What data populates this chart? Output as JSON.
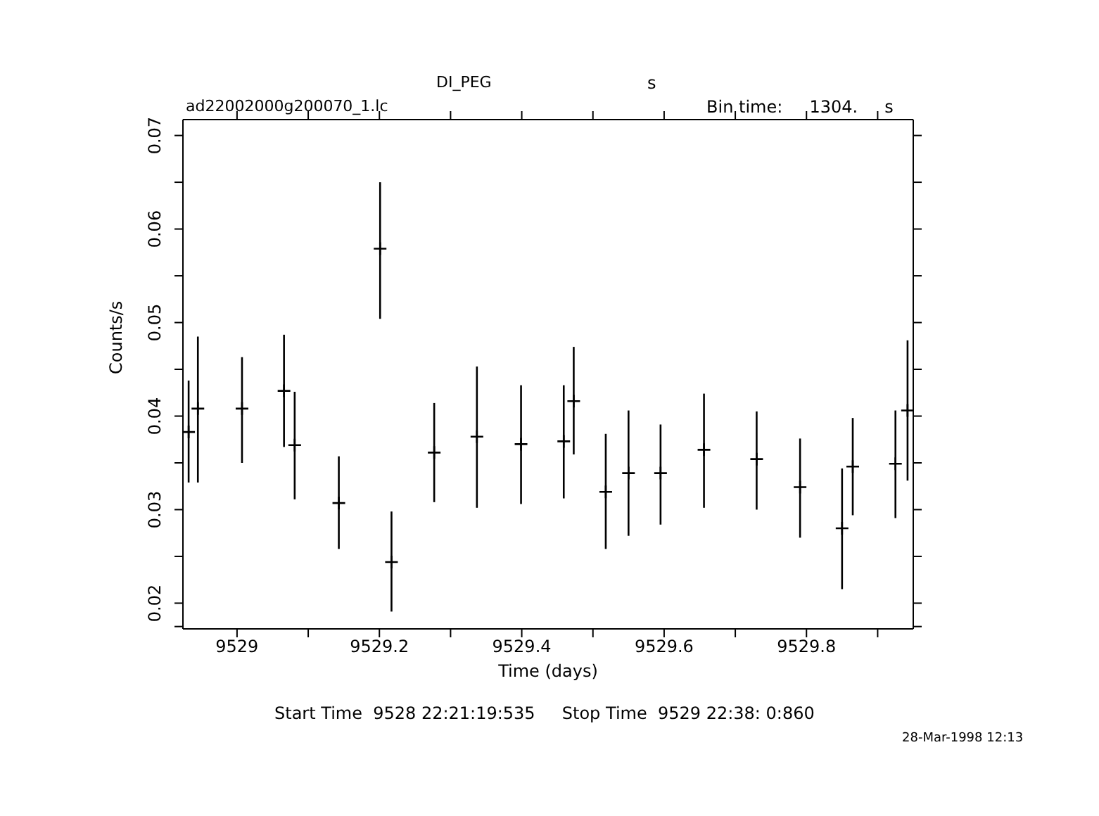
{
  "chart_data": {
    "type": "scatter",
    "title": "DI_PEG",
    "subtitle": "ad22002000g200070_1.lc",
    "xlabel": "Time (days)",
    "ylabel": "Counts/s",
    "annotations": [
      "s",
      "Bin time:     1304.     s",
      "Start Time  9528 22:21:19:535     Stop Time  9529 22:38: 0:860",
      "28-Mar-1998 12:13"
    ],
    "x": [
      9528.932,
      9528.945,
      9529.007,
      9529.066,
      9529.081,
      9529.143,
      9529.201,
      9529.217,
      9529.277,
      9529.337,
      9529.399,
      9529.459,
      9529.473,
      9529.518,
      9529.55,
      9529.595,
      9529.656,
      9529.73,
      9529.791,
      9529.85,
      9529.865,
      9529.925,
      9529.942
    ],
    "series": [
      {
        "color": "#000000",
        "values": [
          0.0383,
          0.0408,
          0.0408,
          0.0427,
          0.0369,
          0.0307,
          0.0579,
          0.0244,
          0.0361,
          0.0378,
          0.037,
          0.0373,
          0.0416,
          0.0319,
          0.0339,
          0.0339,
          0.0364,
          0.0354,
          0.0324,
          0.028,
          0.0346,
          0.0349,
          0.0406
        ],
        "errors": [
          [
            0.0329,
            0.0438
          ],
          [
            0.0329,
            0.0485
          ],
          [
            0.035,
            0.0463
          ],
          [
            0.0367,
            0.0487
          ],
          [
            0.0311,
            0.0426
          ],
          [
            0.0258,
            0.0357
          ],
          [
            0.0504,
            0.065
          ],
          [
            0.0191,
            0.0298
          ],
          [
            0.0308,
            0.0414
          ],
          [
            0.0302,
            0.0453
          ],
          [
            0.0306,
            0.0433
          ],
          [
            0.0312,
            0.0433
          ],
          [
            0.0359,
            0.0474
          ],
          [
            0.0258,
            0.0381
          ],
          [
            0.0272,
            0.0406
          ],
          [
            0.0284,
            0.0391
          ],
          [
            0.0302,
            0.0424
          ],
          [
            0.03,
            0.0405
          ],
          [
            0.027,
            0.0376
          ],
          [
            0.0215,
            0.0344
          ],
          [
            0.0294,
            0.0398
          ],
          [
            0.0291,
            0.0406
          ],
          [
            0.0331,
            0.0481
          ]
        ],
        "marker": "cross"
      }
    ],
    "xlim": [
      9528.924,
      9529.95
    ],
    "xticks": [
      9529,
      {
        "value": 9529.1,
        "label": null
      },
      9529.2,
      {
        "value": 9529.3,
        "label": null
      },
      9529.4,
      {
        "value": 9529.5,
        "label": null
      },
      9529.6,
      {
        "value": 9529.7,
        "label": null
      },
      9529.8,
      {
        "value": 9529.9,
        "label": null
      }
    ],
    "ylim": [
      0.01725,
      0.0717
    ],
    "yticks": [
      {
        "value": 0.0175,
        "label": null
      },
      0.02,
      {
        "value": 0.025,
        "label": null
      },
      0.03,
      {
        "value": 0.035,
        "label": null
      },
      0.04,
      {
        "value": 0.045,
        "label": null
      },
      0.05,
      {
        "value": 0.055,
        "label": null
      },
      0.06,
      {
        "value": 0.065,
        "label": null
      },
      0.07
    ],
    "legend": false
  }
}
